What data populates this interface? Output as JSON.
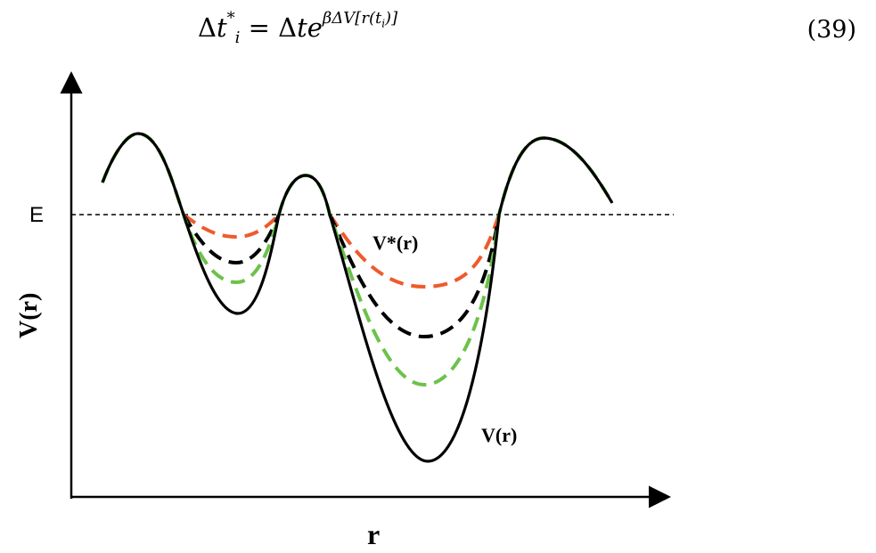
{
  "equation": {
    "lhs_delta": "Δ",
    "lhs_var": "t",
    "lhs_sub": "i",
    "lhs_sup": "*",
    "equals": "=",
    "rhs_delta": "Δ",
    "rhs_base": "te",
    "rhs_exponent": "βΔV[r(t",
    "rhs_exponent_sub": "i",
    "rhs_exponent_end": ")]",
    "number": "(39)"
  },
  "figure": {
    "energy_label": "E",
    "y_axis_label": "V(r)",
    "x_axis_label": "r",
    "curve_label_modified": "V*(r)",
    "curve_label_original": "V(r)",
    "colors": {
      "original": "#000000",
      "boost_high": "#ef5a2b",
      "boost_mid": "#000000",
      "boost_low": "#6cc24a",
      "energy_line": "#000000"
    }
  }
}
